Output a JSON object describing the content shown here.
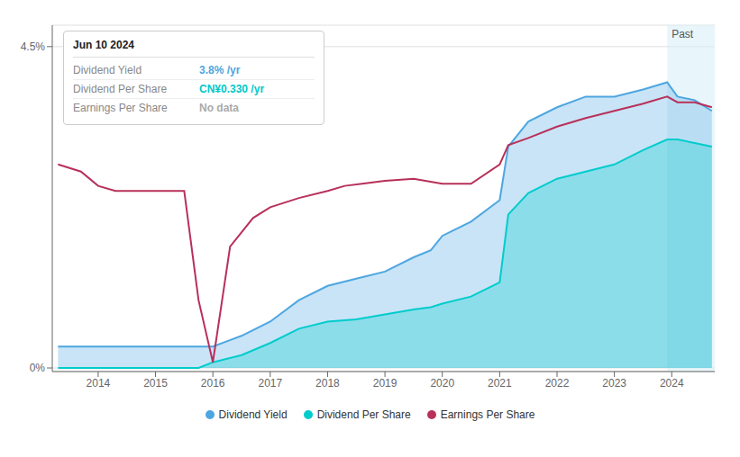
{
  "chart_data": {
    "type": "line",
    "xlim": [
      2013.2,
      2024.75
    ],
    "xticks": [
      2014,
      2015,
      2016,
      2017,
      2018,
      2019,
      2020,
      2021,
      2022,
      2023,
      2024
    ],
    "ylim": [
      -0.05,
      4.8
    ],
    "yticks": [
      {
        "value": 0,
        "label": "0%"
      },
      {
        "value": 4.5,
        "label": "4.5%"
      }
    ],
    "grid": true,
    "legend": "bottom",
    "series": [
      {
        "name": "Dividend Yield",
        "type": "area",
        "color": "#4da6e0",
        "x": [
          2013.3,
          2013.7,
          2014.0,
          2014.5,
          2015.0,
          2015.5,
          2015.75,
          2016.0,
          2016.5,
          2017.0,
          2017.5,
          2018.0,
          2018.5,
          2019.0,
          2019.5,
          2019.8,
          2020.0,
          2020.5,
          2021.0,
          2021.15,
          2021.5,
          2022.0,
          2022.5,
          2023.0,
          2023.5,
          2023.92,
          2024.1,
          2024.4,
          2024.7
        ],
        "values": [
          0.3,
          0.3,
          0.3,
          0.3,
          0.3,
          0.3,
          0.3,
          0.3,
          0.45,
          0.65,
          0.95,
          1.15,
          1.25,
          1.35,
          1.55,
          1.65,
          1.85,
          2.05,
          2.35,
          3.1,
          3.45,
          3.65,
          3.8,
          3.8,
          3.9,
          4.0,
          3.8,
          3.75,
          3.6
        ]
      },
      {
        "name": "Dividend Per Share",
        "type": "area",
        "color": "#00cccc",
        "x": [
          2013.3,
          2013.7,
          2014.0,
          2014.5,
          2015.0,
          2015.5,
          2015.75,
          2016.0,
          2016.5,
          2017.0,
          2017.5,
          2018.0,
          2018.5,
          2019.0,
          2019.5,
          2019.8,
          2020.0,
          2020.5,
          2021.0,
          2021.15,
          2021.5,
          2022.0,
          2022.5,
          2023.0,
          2023.5,
          2023.92,
          2024.1,
          2024.4,
          2024.7
        ],
        "values": [
          0.0,
          0.0,
          0.0,
          0.0,
          0.0,
          0.0,
          0.0,
          0.08,
          0.18,
          0.35,
          0.55,
          0.65,
          0.68,
          0.75,
          0.82,
          0.85,
          0.9,
          1.0,
          1.2,
          2.15,
          2.45,
          2.65,
          2.75,
          2.85,
          3.05,
          3.2,
          3.2,
          3.15,
          3.1
        ]
      },
      {
        "name": "Earnings Per Share",
        "type": "line",
        "color": "#b8305a",
        "x": [
          2013.3,
          2013.7,
          2014.0,
          2014.3,
          2014.7,
          2015.0,
          2015.5,
          2015.75,
          2016.0,
          2016.3,
          2016.7,
          2017.0,
          2017.5,
          2018.0,
          2018.3,
          2018.6,
          2019.0,
          2019.5,
          2020.0,
          2020.5,
          2021.0,
          2021.15,
          2021.5,
          2022.0,
          2022.5,
          2023.0,
          2023.5,
          2023.92,
          2024.1,
          2024.4,
          2024.7
        ],
        "values": [
          2.85,
          2.75,
          2.55,
          2.48,
          2.48,
          2.48,
          2.48,
          0.95,
          0.08,
          1.7,
          2.1,
          2.25,
          2.38,
          2.48,
          2.55,
          2.58,
          2.62,
          2.65,
          2.58,
          2.58,
          2.85,
          3.12,
          3.22,
          3.38,
          3.5,
          3.6,
          3.7,
          3.8,
          3.72,
          3.72,
          3.65
        ]
      }
    ],
    "shaded_region": {
      "from": 2023.92,
      "to": 2024.75,
      "label": "Past",
      "color": "#d6eef8"
    },
    "tooltip": {
      "title": "Jun 10 2024",
      "rows": [
        {
          "label": "Dividend Yield",
          "value": "3.8% /yr",
          "color": "#4da6e0"
        },
        {
          "label": "Dividend Per Share",
          "value": "CN¥0.330 /yr",
          "color": "#00c8c8"
        },
        {
          "label": "Earnings Per Share",
          "value": "No data",
          "color": "#aaaaaa"
        }
      ]
    }
  }
}
